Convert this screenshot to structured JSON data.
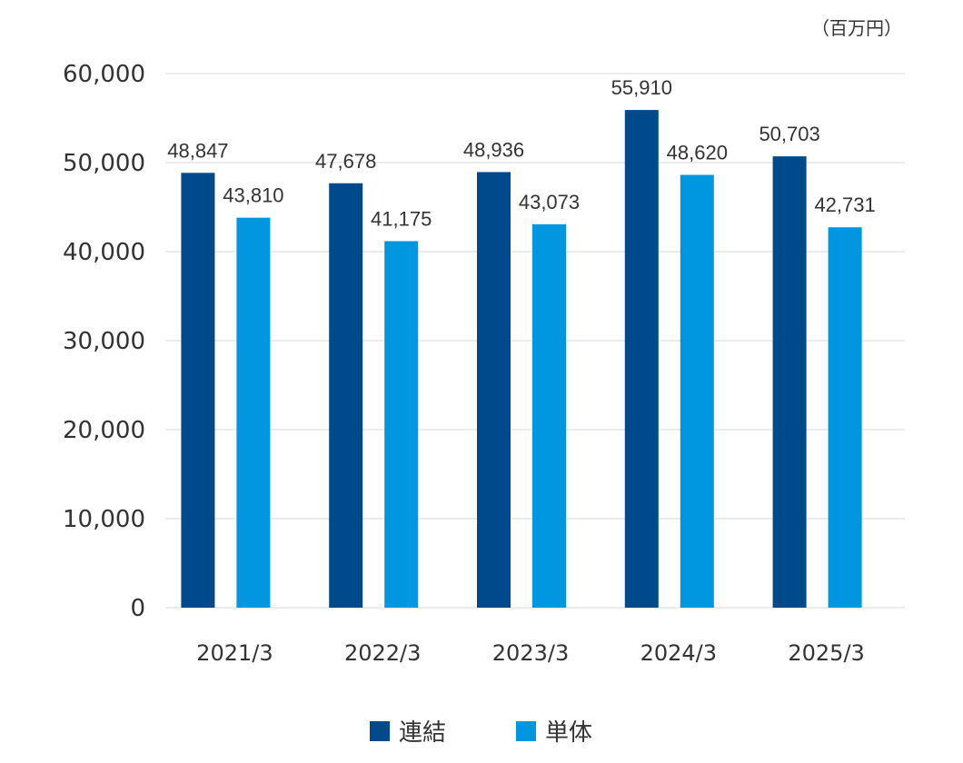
{
  "chart_data": {
    "type": "bar",
    "unit_label": "（百万円）",
    "categories": [
      "2021/3",
      "2022/3",
      "2023/3",
      "2024/3",
      "2025/3"
    ],
    "series": [
      {
        "name": "連結",
        "color": "#004a8c",
        "values": [
          48847,
          47678,
          48936,
          55910,
          50703
        ],
        "labels": [
          "48,847",
          "47,678",
          "48,936",
          "55,910",
          "50,703"
        ]
      },
      {
        "name": "単体",
        "color": "#0097e0",
        "values": [
          43810,
          41175,
          43073,
          48620,
          42731
        ],
        "labels": [
          "43,810",
          "41,175",
          "43,073",
          "48,620",
          "42,731"
        ]
      }
    ],
    "ylim": [
      0,
      60000
    ],
    "yticks": [
      0,
      10000,
      20000,
      30000,
      40000,
      50000,
      60000
    ],
    "ytick_labels": [
      "0",
      "10,000",
      "20,000",
      "30,000",
      "40,000",
      "50,000",
      "60,000"
    ],
    "grid": true,
    "legend_position": "bottom-center"
  }
}
